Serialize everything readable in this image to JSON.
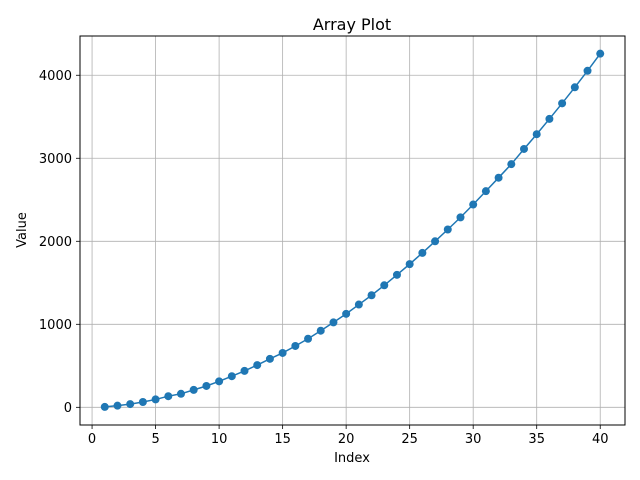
{
  "chart_data": {
    "type": "line",
    "title": "Array Plot",
    "xlabel": "Index",
    "ylabel": "Value",
    "xlim": [
      -0.95,
      41.95
    ],
    "ylim": [
      -213,
      4473
    ],
    "xticks": [
      0,
      5,
      10,
      15,
      20,
      25,
      30,
      35,
      40
    ],
    "yticks": [
      0,
      1000,
      2000,
      3000,
      4000
    ],
    "grid": true,
    "marker": "circle",
    "color": "#1f77b4",
    "series": [
      {
        "x": [
          1,
          2,
          3,
          4,
          5,
          6,
          7,
          8,
          9,
          10,
          11,
          12,
          13,
          14,
          15,
          16,
          17,
          18,
          19,
          20,
          21,
          22,
          23,
          24,
          25,
          26,
          27,
          28,
          29,
          30,
          31,
          32,
          33,
          34,
          35,
          36,
          37,
          38,
          39,
          40
        ],
        "values": [
          5,
          20,
          39,
          64,
          95,
          134,
          163,
          210,
          257,
          313,
          375,
          439,
          509,
          584,
          655,
          739,
          826,
          923,
          1023,
          1126,
          1238,
          1350,
          1470,
          1596,
          1725,
          1860,
          2000,
          2142,
          2288,
          2443,
          2604,
          2766,
          2929,
          3112,
          3290,
          3474,
          3662,
          3855,
          4054,
          4260
        ]
      }
    ]
  }
}
